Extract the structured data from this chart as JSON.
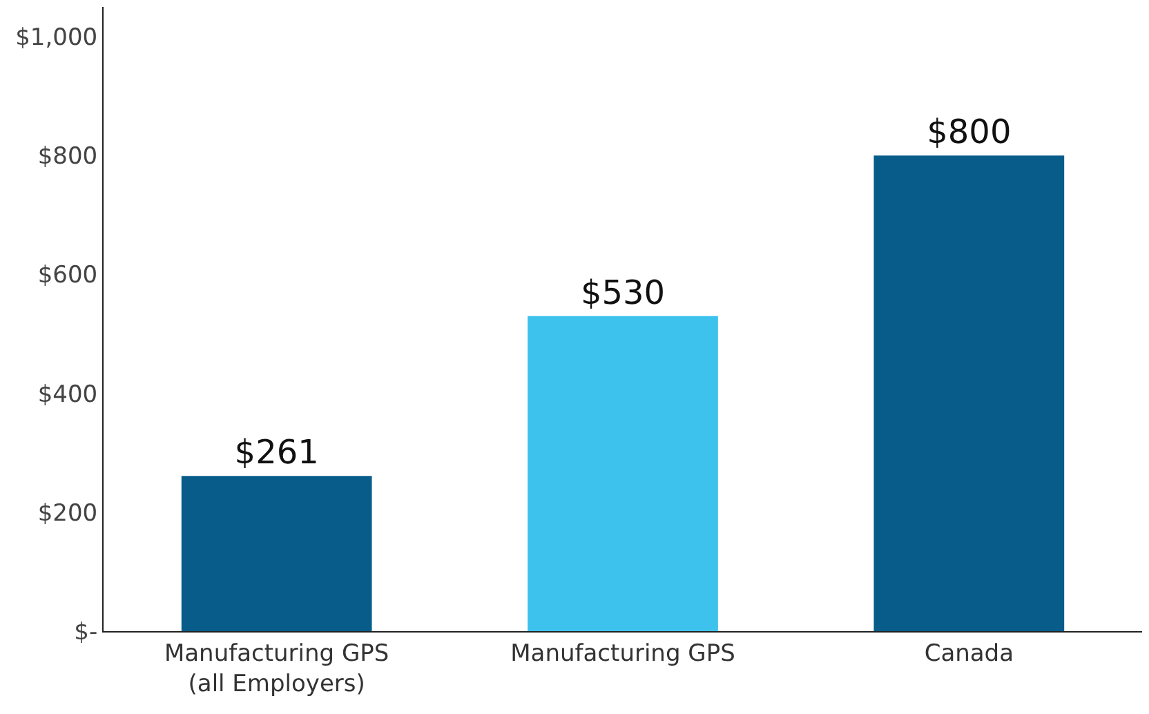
{
  "chart_data": {
    "type": "bar",
    "categories": [
      "Manufacturing GPS\n(all Employers)",
      "Manufacturing GPS",
      "Canada"
    ],
    "values": [
      261,
      530,
      800
    ],
    "colors": [
      "#085c8a",
      "#3dc2ee",
      "#085c8a"
    ],
    "value_labels": [
      "$261",
      "$530",
      "$800"
    ],
    "ylim": [
      0,
      1050
    ],
    "yticks": [
      {
        "value": 0,
        "label": "$-"
      },
      {
        "value": 200,
        "label": "$200"
      },
      {
        "value": 400,
        "label": "$400"
      },
      {
        "value": 600,
        "label": "$600"
      },
      {
        "value": 800,
        "label": "$800"
      },
      {
        "value": 1000,
        "label": "$1,000"
      }
    ],
    "grid": false
  }
}
